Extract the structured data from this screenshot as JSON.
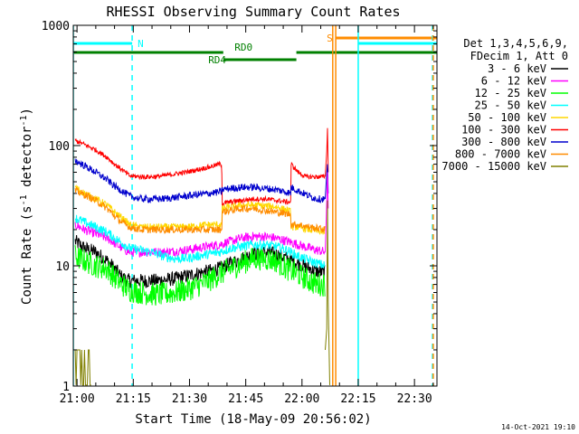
{
  "chart_data": {
    "type": "line",
    "title": "RHESSI Observing Summary Count Rates",
    "xlabel": "Start Time (18-May-09 20:56:02)",
    "ylabel": "Count Rate (s",
    "ylabel_sup1": "-1",
    "ylabel_mid": " detector",
    "ylabel_sup2": "-1",
    "ylabel_end": ")",
    "yscale": "log",
    "ylim": [
      1,
      1000
    ],
    "xlim_minutes": [
      -1.0,
      96.0
    ],
    "x_tick_labels": [
      "21:00",
      "21:15",
      "21:30",
      "21:45",
      "22:00",
      "22:15",
      "22:30"
    ],
    "x_tick_minutes": [
      0,
      15,
      30,
      45,
      60,
      75,
      90
    ],
    "y_tick_labels": [
      "1",
      "10",
      "100",
      "1000"
    ],
    "y_tick_values": [
      1,
      10,
      100,
      1000
    ],
    "legend_position": "right",
    "legend_header": [
      "Det 1,3,4,5,6,9,",
      "FDecim 1, Att 0"
    ],
    "timestamp": "14-Oct-2021 19:10",
    "flags": [
      {
        "label": "N",
        "color": "#00ffff",
        "segments": [
          [
            -1.0,
            14.7
          ]
        ]
      },
      {
        "label": "S",
        "color": "#ff8c00",
        "segments": [
          [
            69.0,
            96.0
          ]
        ]
      },
      {
        "label": "",
        "color": "#00ffff",
        "segments": [
          [
            75.0,
            96.0
          ]
        ]
      },
      {
        "label": "RD0",
        "color": "#008000",
        "segments": [
          [
            -1.0,
            39.0
          ],
          [
            58.5,
            96.0
          ]
        ]
      },
      {
        "label": "RD4",
        "color": "#008000",
        "segments": [
          [
            39.0,
            58.5
          ]
        ]
      }
    ],
    "vlines": [
      {
        "x": -1.0,
        "color": "#00ffff",
        "dash": false
      },
      {
        "x": 14.7,
        "color": "#00ffff",
        "dash": true
      },
      {
        "x": 68.2,
        "color": "#ff8c00",
        "dash": false
      },
      {
        "x": 69.0,
        "color": "#ff8c00",
        "dash": false
      },
      {
        "x": 75.0,
        "color": "#00ffff",
        "dash": false
      },
      {
        "x": 94.8,
        "color": "#00ffff",
        "dash": true
      },
      {
        "x": 95.0,
        "color": "#ff8c00",
        "dash": true
      }
    ],
    "series": [
      {
        "name": "3 - 6 keV",
        "color": "#000000",
        "noise": 0.06,
        "points": [
          [
            -0.5,
            16
          ],
          [
            2,
            14
          ],
          [
            5,
            13
          ],
          [
            8,
            11
          ],
          [
            10,
            9.5
          ],
          [
            12,
            8
          ],
          [
            14,
            7.5
          ],
          [
            17,
            7.5
          ],
          [
            20,
            7.5
          ],
          [
            23,
            7.6
          ],
          [
            26,
            7.8
          ],
          [
            29,
            8.2
          ],
          [
            32,
            8.6
          ],
          [
            35,
            9
          ],
          [
            38,
            9.5
          ],
          [
            41,
            10.5
          ],
          [
            44,
            11.5
          ],
          [
            47,
            12.5
          ],
          [
            50,
            13
          ],
          [
            53,
            12.5
          ],
          [
            56,
            11.5
          ],
          [
            59,
            10.5
          ],
          [
            62,
            9.5
          ],
          [
            64,
            9
          ],
          [
            66.2,
            8.8
          ]
        ]
      },
      {
        "name": "6 - 12 keV",
        "color": "#ff00ff",
        "noise": 0.04,
        "points": [
          [
            -0.5,
            22
          ],
          [
            2,
            20
          ],
          [
            5,
            18.5
          ],
          [
            8,
            17
          ],
          [
            10,
            15.5
          ],
          [
            12,
            14
          ],
          [
            14,
            13
          ],
          [
            17,
            13
          ],
          [
            20,
            13
          ],
          [
            23,
            13
          ],
          [
            26,
            13.2
          ],
          [
            29,
            13.5
          ],
          [
            32,
            14
          ],
          [
            35,
            14.5
          ],
          [
            38,
            15
          ],
          [
            41,
            16
          ],
          [
            44,
            17
          ],
          [
            47,
            17.5
          ],
          [
            50,
            17.5
          ],
          [
            53,
            17
          ],
          [
            56,
            16
          ],
          [
            59,
            15
          ],
          [
            62,
            14
          ],
          [
            64,
            13.5
          ],
          [
            66.2,
            13
          ]
        ]
      },
      {
        "name": "12 - 25 keV",
        "color": "#00ff00",
        "noise": 0.1,
        "points": [
          [
            -0.5,
            12
          ],
          [
            2,
            11
          ],
          [
            5,
            10
          ],
          [
            8,
            9.5
          ],
          [
            10,
            8
          ],
          [
            12,
            7
          ],
          [
            14,
            6.3
          ],
          [
            17,
            6
          ],
          [
            20,
            5.8
          ],
          [
            23,
            5.8
          ],
          [
            26,
            6
          ],
          [
            29,
            6.3
          ],
          [
            32,
            6.8
          ],
          [
            35,
            7.5
          ],
          [
            38,
            8.5
          ],
          [
            41,
            9.5
          ],
          [
            44,
            10.5
          ],
          [
            47,
            11.5
          ],
          [
            50,
            11.5
          ],
          [
            53,
            11
          ],
          [
            56,
            9.5
          ],
          [
            59,
            8.5
          ],
          [
            62,
            7.5
          ],
          [
            64,
            7
          ],
          [
            66.2,
            7
          ]
        ]
      },
      {
        "name": "25 - 50 keV",
        "color": "#00ffff",
        "noise": 0.04,
        "points": [
          [
            -0.5,
            25
          ],
          [
            2,
            23
          ],
          [
            5,
            21
          ],
          [
            8,
            19
          ],
          [
            10,
            17
          ],
          [
            12,
            15.5
          ],
          [
            14,
            14
          ],
          [
            17,
            13.5
          ],
          [
            20,
            13
          ],
          [
            23,
            12
          ],
          [
            26,
            11.5
          ],
          [
            29,
            11.5
          ],
          [
            32,
            12
          ],
          [
            35,
            12.5
          ],
          [
            38,
            13
          ],
          [
            41,
            14
          ],
          [
            44,
            14.5
          ],
          [
            47,
            15
          ],
          [
            50,
            15
          ],
          [
            53,
            14.5
          ],
          [
            56,
            13.5
          ],
          [
            59,
            12
          ],
          [
            62,
            11
          ],
          [
            64,
            10.5
          ],
          [
            66.2,
            10
          ]
        ]
      },
      {
        "name": "50 - 100 keV",
        "color": "#ffd700",
        "noise": 0.03,
        "points": [
          [
            -0.5,
            45
          ],
          [
            2,
            40
          ],
          [
            5,
            36
          ],
          [
            8,
            32
          ],
          [
            10,
            28
          ],
          [
            12,
            25
          ],
          [
            14,
            22
          ],
          [
            17,
            21
          ],
          [
            20,
            21
          ],
          [
            23,
            21
          ],
          [
            26,
            21
          ],
          [
            29,
            21
          ],
          [
            32,
            21.5
          ],
          [
            35,
            22
          ],
          [
            38,
            22
          ],
          [
            38.6,
            22
          ],
          [
            38.7,
            30
          ],
          [
            41,
            31
          ],
          [
            44,
            32
          ],
          [
            47,
            32
          ],
          [
            50,
            31.5
          ],
          [
            53,
            31
          ],
          [
            56,
            29
          ],
          [
            57,
            28
          ],
          [
            57.1,
            21
          ],
          [
            59,
            21
          ],
          [
            62,
            20
          ],
          [
            64,
            19.5
          ],
          [
            66.2,
            19
          ]
        ]
      },
      {
        "name": "100 - 300 keV",
        "color": "#ff0000",
        "noise": 0.02,
        "points": [
          [
            -0.5,
            110
          ],
          [
            2,
            102
          ],
          [
            5,
            92
          ],
          [
            8,
            80
          ],
          [
            10,
            70
          ],
          [
            12,
            63
          ],
          [
            14,
            56
          ],
          [
            17,
            55
          ],
          [
            20,
            55
          ],
          [
            23,
            56
          ],
          [
            26,
            58
          ],
          [
            29,
            60
          ],
          [
            32,
            63
          ],
          [
            35,
            66
          ],
          [
            38,
            70
          ],
          [
            38.6,
            70
          ],
          [
            38.7,
            33
          ],
          [
            41,
            34
          ],
          [
            44,
            35
          ],
          [
            47,
            36
          ],
          [
            50,
            36
          ],
          [
            53,
            35
          ],
          [
            56,
            34
          ],
          [
            57,
            34
          ],
          [
            57.1,
            70
          ],
          [
            59,
            60
          ],
          [
            61,
            55
          ],
          [
            64,
            55
          ],
          [
            66.2,
            55
          ]
        ]
      },
      {
        "name": "300 - 800 keV",
        "color": "#0000cd",
        "noise": 0.03,
        "points": [
          [
            -0.5,
            75
          ],
          [
            2,
            68
          ],
          [
            5,
            60
          ],
          [
            8,
            52
          ],
          [
            10,
            46
          ],
          [
            12,
            42
          ],
          [
            14,
            38
          ],
          [
            17,
            36
          ],
          [
            20,
            36
          ],
          [
            23,
            36
          ],
          [
            26,
            37
          ],
          [
            29,
            38
          ],
          [
            32,
            39
          ],
          [
            35,
            40
          ],
          [
            38,
            41
          ],
          [
            38.6,
            41
          ],
          [
            38.7,
            43
          ],
          [
            41,
            44
          ],
          [
            44,
            45
          ],
          [
            47,
            45
          ],
          [
            50,
            44
          ],
          [
            53,
            43
          ],
          [
            56,
            41
          ],
          [
            57,
            40
          ],
          [
            57.1,
            45
          ],
          [
            59,
            42
          ],
          [
            62,
            38
          ],
          [
            64,
            36
          ],
          [
            66.2,
            36
          ]
        ]
      },
      {
        "name": "800 - 7000 keV",
        "color": "#ff8c00",
        "noise": 0.03,
        "points": [
          [
            -0.5,
            42
          ],
          [
            2,
            39
          ],
          [
            5,
            35
          ],
          [
            8,
            30
          ],
          [
            10,
            26
          ],
          [
            12,
            23
          ],
          [
            14,
            21
          ],
          [
            17,
            20
          ],
          [
            20,
            20
          ],
          [
            23,
            20
          ],
          [
            26,
            20
          ],
          [
            29,
            20
          ],
          [
            32,
            20
          ],
          [
            35,
            20
          ],
          [
            38,
            20
          ],
          [
            38.6,
            20
          ],
          [
            38.7,
            28
          ],
          [
            41,
            29
          ],
          [
            44,
            30
          ],
          [
            47,
            30
          ],
          [
            50,
            29
          ],
          [
            53,
            28
          ],
          [
            56,
            27
          ],
          [
            57,
            27
          ],
          [
            57.1,
            22
          ],
          [
            59,
            22
          ],
          [
            62,
            21
          ],
          [
            64,
            20.5
          ],
          [
            66.2,
            20
          ]
        ]
      },
      {
        "name": "7000 - 15000 keV",
        "color": "#808000",
        "noise": 0.0,
        "points": [
          [
            -0.5,
            2
          ],
          [
            3.8,
            2
          ]
        ]
      }
    ]
  }
}
